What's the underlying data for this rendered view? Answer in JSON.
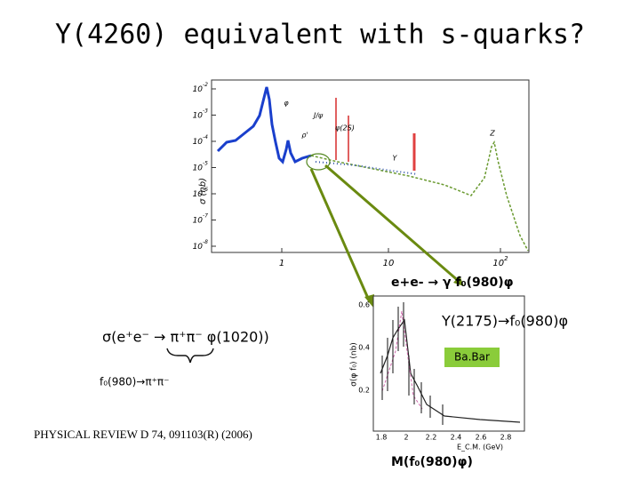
{
  "title": "Y(4260) equivalent with s-quarks?",
  "main_plot": {
    "y_label": "σ (nb)",
    "y_ticks": [
      {
        "base": "10",
        "exp": "-2"
      },
      {
        "base": "10",
        "exp": "-3"
      },
      {
        "base": "10",
        "exp": "-4"
      },
      {
        "base": "10",
        "exp": "-5"
      },
      {
        "base": "10",
        "exp": "-6"
      },
      {
        "base": "10",
        "exp": "-7"
      },
      {
        "base": "10",
        "exp": "-8"
      }
    ],
    "x_ticks": [
      {
        "base": "1"
      },
      {
        "base": "10"
      },
      {
        "base": "10",
        "exp": "2"
      }
    ],
    "peaks": [
      "ρ'",
      "φ",
      "J/ψ",
      "ψ(2S)",
      "Υ",
      "Z"
    ]
  },
  "reaction_label": "e+e- → γ f₀(980)φ",
  "cross_section_label": "σ(e⁺e⁻ → π⁺π⁻ φ(1020))",
  "decay_label": "f₀(980)→π⁺π⁻",
  "resonance_label": "Y(2175)→f₀(980)φ",
  "experiment_label": "Ba.Bar",
  "reference": "PHYSICAL REVIEW D 74, 091103(R) (2006)",
  "inset_plot": {
    "y_label": "σ(φ f₀) (nb)",
    "y_ticks": [
      "0.6",
      "0.4",
      "0.2"
    ],
    "x_ticks": [
      "1.8",
      "2",
      "2.2",
      "2.4",
      "2.6",
      "2.8"
    ],
    "x_label": "E_C.M. (GeV)"
  },
  "mass_label": "M(f₀(980)φ)"
}
